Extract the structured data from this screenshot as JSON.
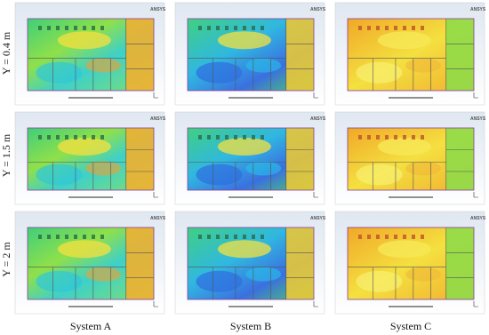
{
  "rows": [
    "Y = 0.4 m",
    "Y = 1.5 m",
    "Y = 2 m"
  ],
  "columns": [
    "System A",
    "System B",
    "System C"
  ],
  "logo": "ANSYS"
}
